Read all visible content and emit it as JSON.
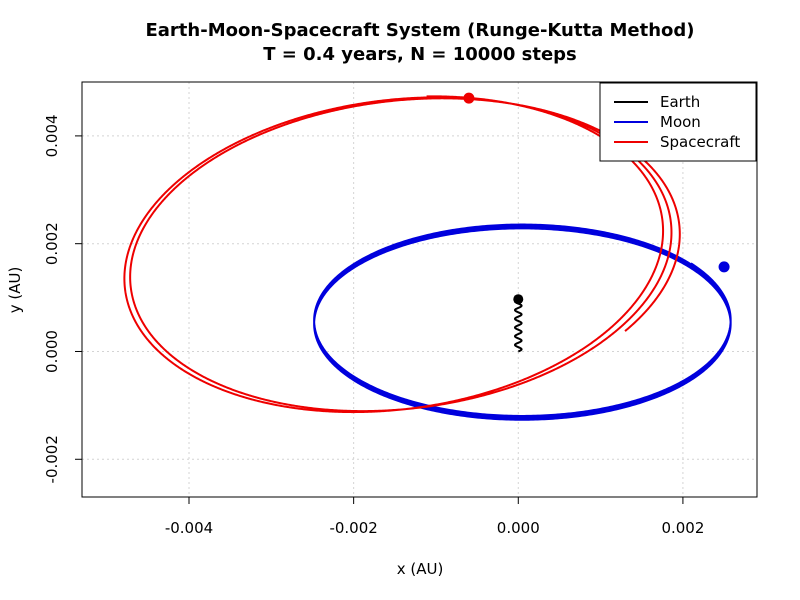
{
  "chart_data": {
    "type": "line",
    "title": "Earth-Moon-Spacecraft System (Runge-Kutta Method)",
    "subtitle": "T = 0.4 years, N = 10000 steps",
    "xlabel": "x (AU)",
    "ylabel": "y (AU)",
    "xlim": [
      -0.0053,
      0.0029
    ],
    "ylim": [
      -0.0027,
      0.005
    ],
    "xticks": [
      -0.004,
      -0.002,
      0.0,
      0.002
    ],
    "xtick_labels": [
      "-0.004",
      "-0.002",
      "0.000",
      "0.002"
    ],
    "yticks": [
      -0.002,
      0.0,
      0.002,
      0.004
    ],
    "ytick_labels": [
      "-0.002",
      "0.000",
      "0.002",
      "0.004"
    ],
    "grid": true,
    "legend_position": "top-right",
    "series": [
      {
        "name": "Earth",
        "color": "#000000",
        "model": "earth-drift",
        "x_center": 0.0,
        "wiggle_amplitude": 4e-05,
        "y_start": 0.0,
        "y_end": 0.00097,
        "turns": 6,
        "final_position": [
          0.0,
          0.00097
        ]
      },
      {
        "name": "Moon",
        "color": "#0000dd",
        "model": "drifting-ellipse",
        "center": [
          5e-05,
          0.0005
        ],
        "center_drift": [
          0.0,
          9e-05
        ],
        "semi_axis_x": 0.00253,
        "semi_axis_y": 0.00178,
        "turns": 5.1,
        "final_position": [
          0.0025,
          0.00157
        ]
      },
      {
        "name": "Spacecraft",
        "color": "#ee0000",
        "model": "precessing-ellipse",
        "start_position": [
          0.002,
          0.0
        ],
        "center_start": [
          -0.00135,
          0.0018
        ],
        "center_end": [
          -0.00155,
          0.0018
        ],
        "semi_axis_x": 0.0034,
        "semi_axis_y": 0.0028,
        "tilt_start_deg": 22,
        "tilt_end_deg": 27,
        "turns": 2.32,
        "final_position": [
          -0.0006,
          0.0047
        ]
      }
    ],
    "legend": [
      "Earth",
      "Moon",
      "Spacecraft"
    ]
  }
}
